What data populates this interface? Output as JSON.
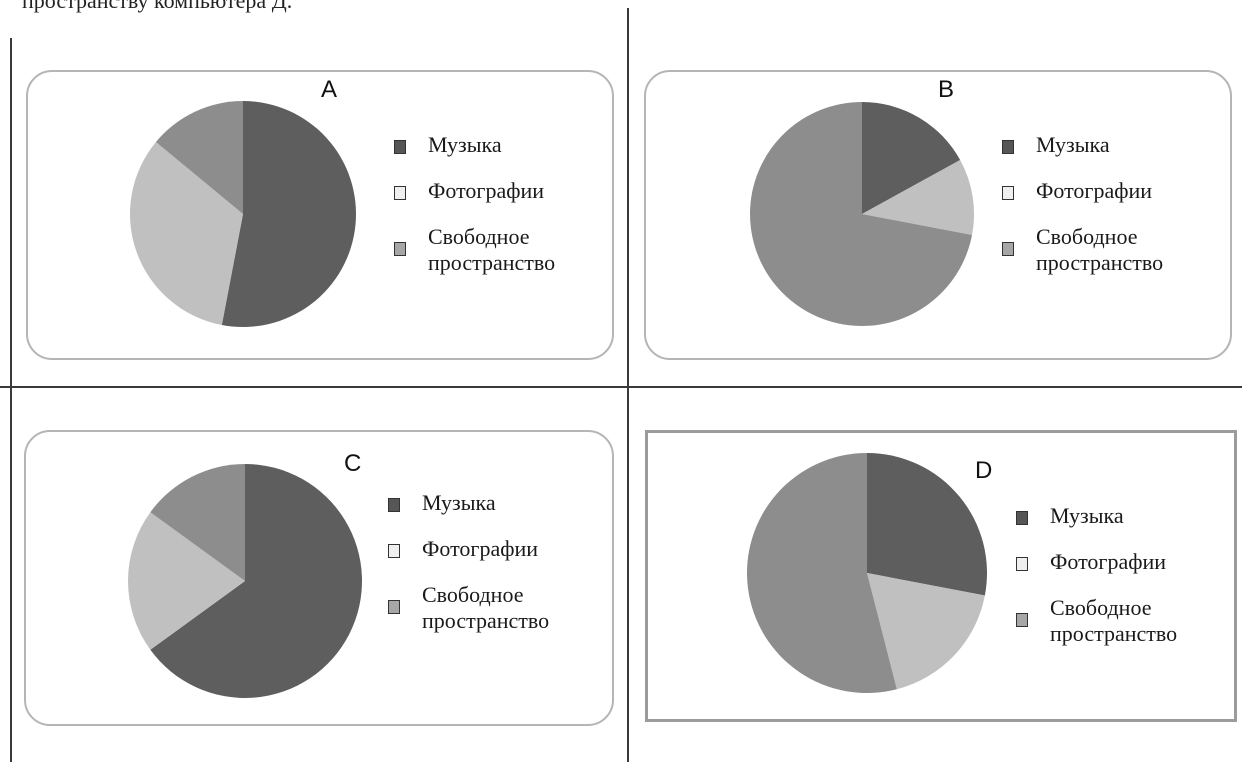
{
  "header": {
    "text": "пространству компьютера Д."
  },
  "colors": {
    "music": "#5e5e5e",
    "photos": "#c0c0c0",
    "free_space": "#8d8d8d",
    "swatch_music": "#565656",
    "swatch_photos": "#efefef",
    "swatch_free_space": "#a6a6a6"
  },
  "legend_labels": {
    "music": "Музыка",
    "photos": "Фотографии",
    "free_space_line1": "Свободное",
    "free_space_line2": "пространство"
  },
  "chart_data": [
    {
      "type": "pie",
      "label": "A",
      "categories": [
        "Музыка",
        "Фотографии",
        "Свободное пространство"
      ],
      "values": [
        53,
        33,
        14
      ]
    },
    {
      "type": "pie",
      "label": "B",
      "categories": [
        "Музыка",
        "Фотографии",
        "Свободное пространство"
      ],
      "values": [
        17,
        11,
        72
      ]
    },
    {
      "type": "pie",
      "label": "C",
      "categories": [
        "Музыка",
        "Фотографии",
        "Свободное пространство"
      ],
      "values": [
        65,
        20,
        15
      ]
    },
    {
      "type": "pie",
      "label": "D",
      "categories": [
        "Музыка",
        "Фотографии",
        "Свободное пространство"
      ],
      "values": [
        28,
        18,
        54
      ]
    }
  ]
}
